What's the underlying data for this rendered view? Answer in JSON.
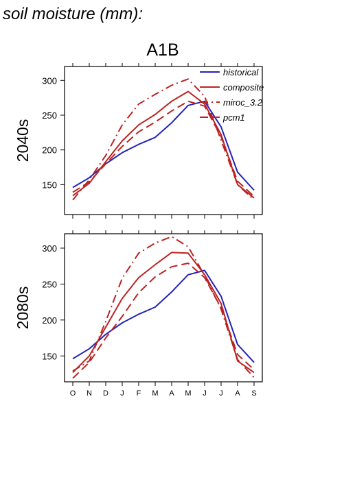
{
  "figure": {
    "title": "soil moisture (mm):",
    "scenario": "A1B"
  },
  "colors": {
    "historical": "#2222bb",
    "projections": "#bb2222",
    "axis": "#000000"
  },
  "chart_data": [
    {
      "type": "line",
      "title": "A1B",
      "ylabel": "2040s",
      "xlabel": "",
      "categories": [
        "O",
        "N",
        "D",
        "J",
        "F",
        "M",
        "A",
        "M",
        "J",
        "J",
        "A",
        "S"
      ],
      "ylim": [
        107,
        320
      ],
      "yticks": [
        150,
        200,
        250,
        300
      ],
      "grid": false,
      "legend": {
        "position": "top-right"
      },
      "series": [
        {
          "name": "historical",
          "color": "#2222bb",
          "dash": "solid",
          "values": [
            146,
            160,
            180,
            196,
            208,
            218,
            239,
            264,
            270,
            233,
            168,
            142
          ]
        },
        {
          "name": "composite",
          "color": "#bb2222",
          "dash": "solid",
          "values": [
            134,
            152,
            183,
            213,
            236,
            251,
            270,
            284,
            266,
            222,
            150,
            131
          ]
        },
        {
          "name": "miroc_3.2",
          "color": "#bb2222",
          "dash": "dashdot",
          "values": [
            128,
            157,
            192,
            236,
            266,
            280,
            293,
            302,
            277,
            214,
            150,
            128
          ]
        },
        {
          "name": "pcm1",
          "color": "#bb2222",
          "dash": "dashed",
          "values": [
            139,
            154,
            180,
            205,
            226,
            240,
            256,
            270,
            263,
            219,
            155,
            133
          ]
        }
      ]
    },
    {
      "type": "line",
      "title": "",
      "ylabel": "2080s",
      "xlabel": "",
      "categories": [
        "O",
        "N",
        "D",
        "J",
        "F",
        "M",
        "A",
        "M",
        "J",
        "J",
        "A",
        "S"
      ],
      "ylim": [
        114,
        320
      ],
      "yticks": [
        150,
        200,
        250,
        300
      ],
      "grid": false,
      "series": [
        {
          "name": "historical",
          "color": "#2222bb",
          "dash": "solid",
          "values": [
            146,
            160,
            180,
            196,
            208,
            218,
            239,
            263,
            269,
            233,
            166,
            141
          ]
        },
        {
          "name": "composite",
          "color": "#bb2222",
          "dash": "solid",
          "values": [
            127,
            150,
            190,
            230,
            259,
            277,
            294,
            293,
            263,
            223,
            143,
            127
          ]
        },
        {
          "name": "miroc_3.2",
          "color": "#bb2222",
          "dash": "dashdot",
          "values": [
            129,
            143,
            198,
            258,
            293,
            307,
            316,
            302,
            262,
            215,
            145,
            120
          ]
        },
        {
          "name": "pcm1",
          "color": "#bb2222",
          "dash": "dashed",
          "values": [
            119,
            141,
            175,
            205,
            238,
            260,
            274,
            279,
            259,
            217,
            152,
            131
          ]
        }
      ]
    }
  ]
}
